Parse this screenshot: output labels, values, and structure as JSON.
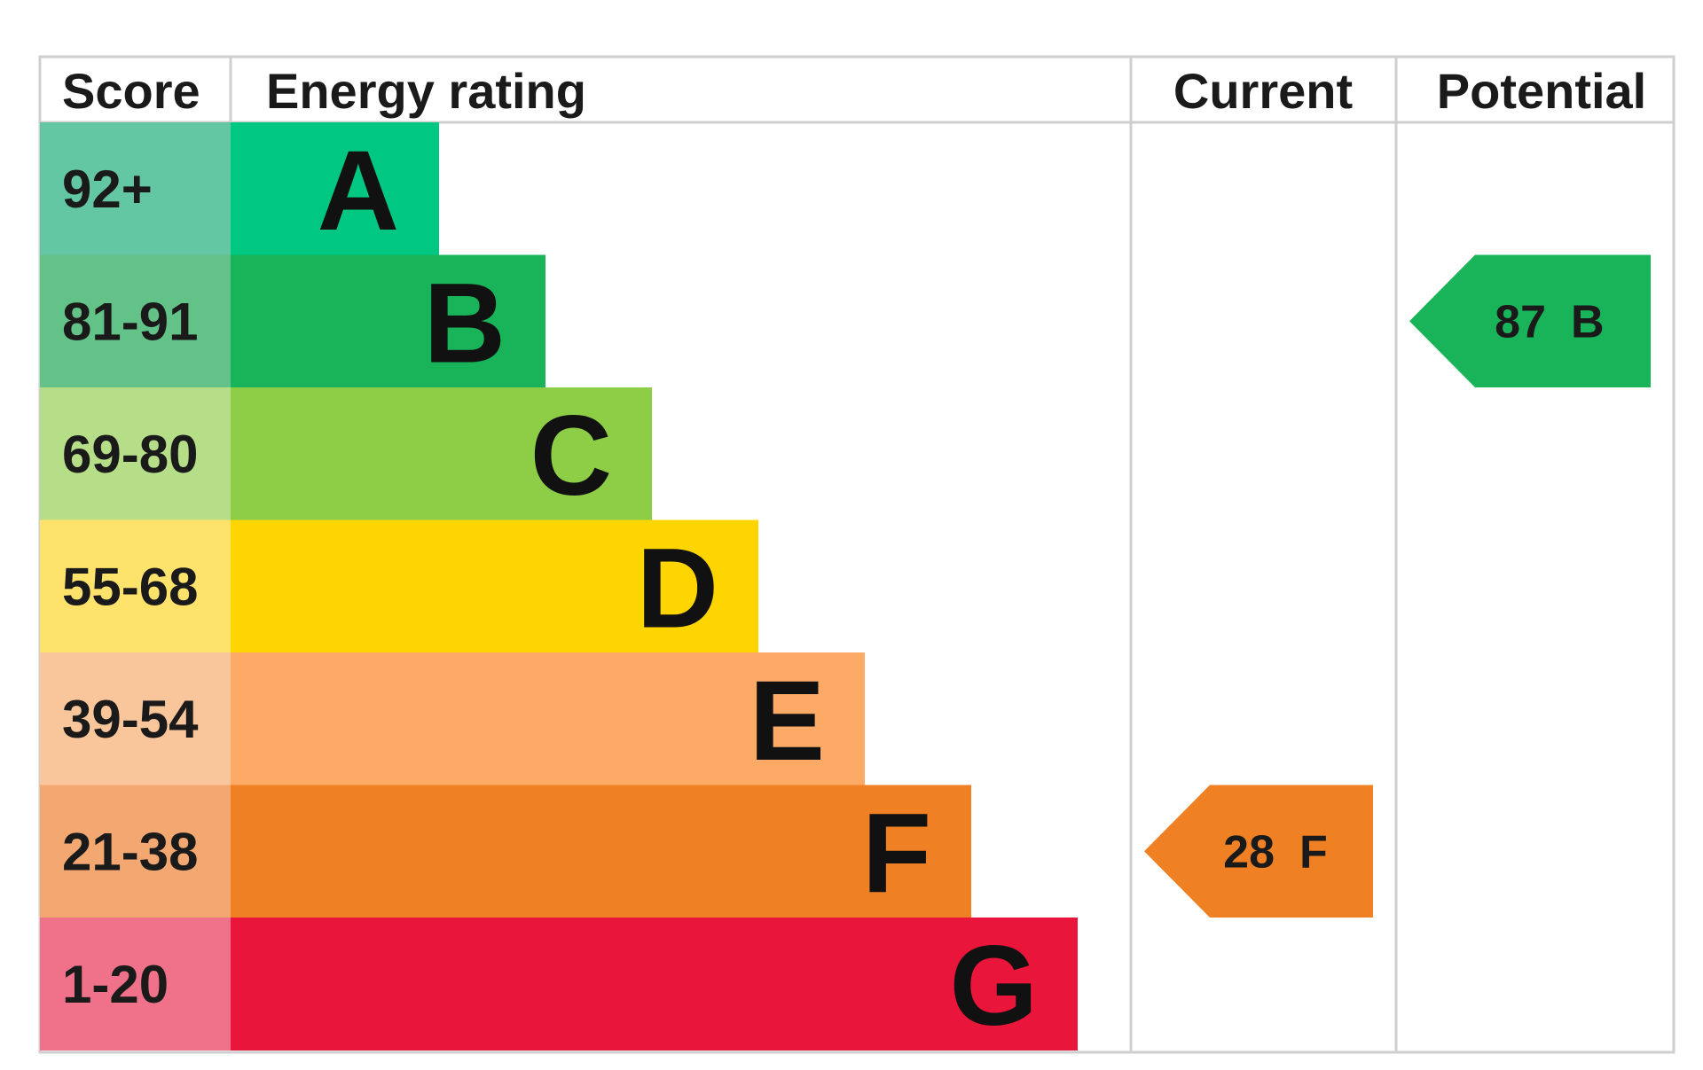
{
  "chart_data": {
    "type": "table",
    "columns": {
      "score": "Score",
      "energy_rating": "Energy rating",
      "current": "Current",
      "potential": "Potential"
    },
    "bands": [
      {
        "letter": "A",
        "score": "92+",
        "color": "#00c781",
        "score_bg": "#64c7a3"
      },
      {
        "letter": "B",
        "score": "81-91",
        "color": "#19b459",
        "score_bg": "#63c287"
      },
      {
        "letter": "C",
        "score": "69-80",
        "color": "#8dce46",
        "score_bg": "#b6dd88"
      },
      {
        "letter": "D",
        "score": "55-68",
        "color": "#ffd500",
        "score_bg": "#fde36b"
      },
      {
        "letter": "E",
        "score": "39-54",
        "color": "#fcaa65",
        "score_bg": "#f9c59a"
      },
      {
        "letter": "F",
        "score": "21-38",
        "color": "#ef8023",
        "score_bg": "#f2a870"
      },
      {
        "letter": "G",
        "score": "1-20",
        "color": "#e9153b",
        "score_bg": "#ef728a"
      }
    ],
    "current": {
      "value": 28,
      "letter": "F",
      "color": "#ef8023"
    },
    "potential": {
      "value": 87,
      "letter": "B",
      "color": "#19b459"
    }
  }
}
